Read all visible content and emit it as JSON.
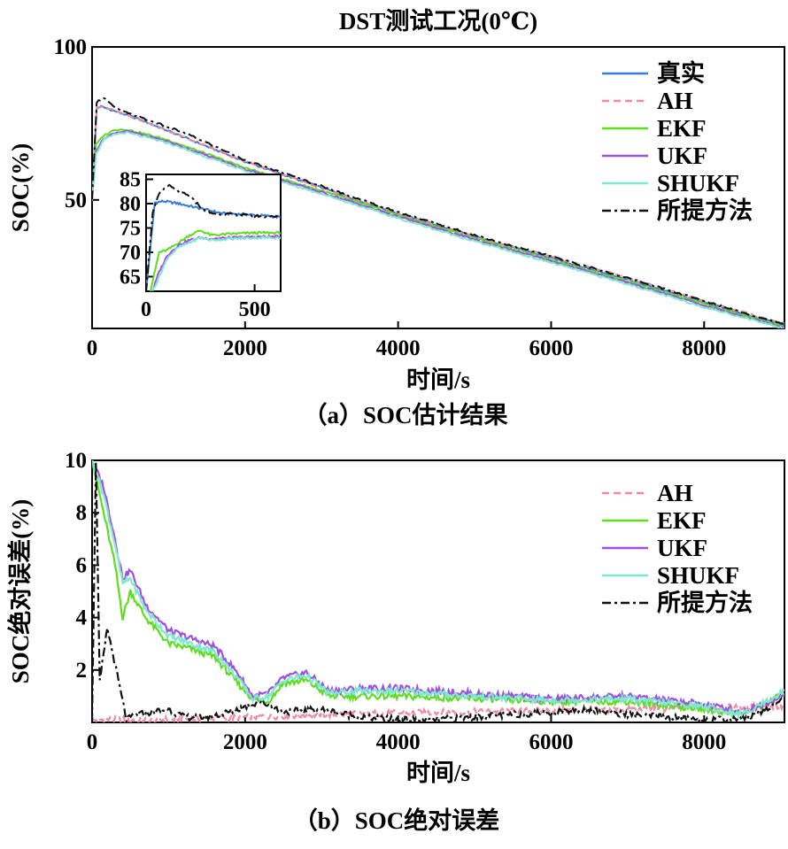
{
  "chart_data": [
    {
      "type": "line",
      "title": "DST测试工况(0℃)",
      "caption": "（a）SOC估计结果",
      "xlabel": "时间/s",
      "ylabel": "SOC(%)",
      "xlim": [
        0,
        9050
      ],
      "ylim": [
        8,
        100
      ],
      "xticks": [
        0,
        2000,
        4000,
        6000,
        8000
      ],
      "yticks": [
        50,
        100
      ],
      "legend_position": "top-right",
      "series": [
        {
          "name": "真实",
          "color": "#3a7bd5",
          "dash": "solid",
          "x": [
            0,
            60,
            120,
            300,
            600,
            1000,
            1500,
            2000,
            3000,
            4000,
            5000,
            6000,
            7000,
            8000,
            9050
          ],
          "y": [
            50,
            80,
            80.5,
            79,
            76.5,
            72.5,
            67.5,
            62.5,
            54,
            45.5,
            38,
            31,
            24,
            16.5,
            9
          ]
        },
        {
          "name": "AH",
          "color": "#f08aa0",
          "dash": "dashed",
          "x": [
            0,
            60,
            150,
            300,
            600,
            1000,
            1500,
            2000,
            3000,
            4000,
            5000,
            6000,
            7000,
            8000,
            9050
          ],
          "y": [
            50,
            80,
            80.5,
            79,
            76.5,
            72.5,
            67.5,
            62.5,
            54,
            45.5,
            38,
            31.5,
            24.5,
            17,
            9.5
          ]
        },
        {
          "name": "EKF",
          "color": "#5fdc1e",
          "dash": "solid",
          "x": [
            0,
            50,
            150,
            300,
            450,
            700,
            1000,
            1500,
            2000,
            3000,
            4000,
            5000,
            6000,
            7000,
            8000,
            9050
          ],
          "y": [
            50,
            68,
            71,
            73,
            73,
            71.5,
            69.5,
            65,
            60.5,
            53,
            45,
            37.5,
            30.5,
            23.5,
            16,
            8.5
          ]
        },
        {
          "name": "UKF",
          "color": "#a050e0",
          "dash": "solid",
          "x": [
            0,
            50,
            150,
            300,
            450,
            700,
            1000,
            1500,
            2000,
            3000,
            4000,
            5000,
            6000,
            7000,
            8000,
            9050
          ],
          "y": [
            50,
            66,
            70,
            72,
            72.5,
            71,
            69,
            64.5,
            60,
            52.5,
            44.5,
            37,
            30,
            23,
            15.5,
            8.3
          ]
        },
        {
          "name": "SHUKF",
          "color": "#7ee8d0",
          "dash": "solid",
          "x": [
            0,
            50,
            150,
            300,
            450,
            700,
            1000,
            1500,
            2000,
            3000,
            4000,
            5000,
            6000,
            7000,
            8000,
            9050
          ],
          "y": [
            50,
            65,
            69.5,
            71.5,
            72,
            70.5,
            68.5,
            64,
            59.5,
            52,
            44,
            36.5,
            29.5,
            22.5,
            15,
            8
          ]
        },
        {
          "name": "所提方法",
          "color": "#111111",
          "dash": "dashdot",
          "x": [
            0,
            60,
            150,
            300,
            500,
            800,
            1200,
            1700,
            2000,
            3000,
            4000,
            5000,
            6000,
            7000,
            8000,
            9050
          ],
          "y": [
            50,
            82,
            83.5,
            80,
            78,
            75.5,
            72,
            66.5,
            63,
            54.5,
            46,
            38.5,
            31.5,
            24.5,
            17,
            9.2
          ]
        }
      ],
      "inset": {
        "xlim": [
          0,
          620
        ],
        "ylim": [
          62,
          86
        ],
        "xticks": [
          0,
          500
        ],
        "yticks": [
          65,
          70,
          75,
          80,
          85
        ],
        "series": [
          {
            "name": "真实",
            "color": "#3a7bd5",
            "dash": "solid",
            "x": [
              0,
              40,
              80,
              150,
              250,
              350,
              450,
              550,
              620
            ],
            "y": [
              62,
              80.2,
              80.5,
              80,
              79,
              78,
              77.8,
              77.5,
              77.2
            ]
          },
          {
            "name": "EKF",
            "color": "#5fdc1e",
            "dash": "solid",
            "x": [
              20,
              60,
              100,
              150,
              200,
              250,
              300,
              400,
              500,
              620
            ],
            "y": [
              62,
              70,
              70.5,
              72,
              73.5,
              74.5,
              73.5,
              73.8,
              74,
              74
            ]
          },
          {
            "name": "UKF",
            "color": "#a050e0",
            "dash": "solid",
            "x": [
              30,
              60,
              100,
              150,
              200,
              250,
              300,
              400,
              500,
              620
            ],
            "y": [
              62,
              66,
              69.5,
              71.5,
              72.5,
              73,
              72.8,
              73,
              73.2,
              73.2
            ]
          },
          {
            "name": "SHUKF",
            "color": "#7ee8d0",
            "dash": "solid",
            "x": [
              30,
              60,
              100,
              150,
              200,
              250,
              300,
              400,
              500,
              620
            ],
            "y": [
              62,
              65,
              69,
              71,
              72,
              73,
              72.5,
              72.8,
              73,
              73
            ]
          },
          {
            "name": "所提方法",
            "color": "#111111",
            "dash": "dashdot",
            "x": [
              0,
              30,
              60,
              100,
              130,
              200,
              260,
              300,
              400,
              500,
              620
            ],
            "y": [
              62,
              78,
              82,
              83.8,
              83,
              81.5,
              79,
              78,
              77.8,
              77.5,
              77.2
            ]
          }
        ]
      }
    },
    {
      "type": "line",
      "caption": "（b）SOC绝对误差",
      "xlabel": "时间/s",
      "ylabel": "SOC绝对误差(%)",
      "xlim": [
        0,
        9050
      ],
      "ylim": [
        0,
        10
      ],
      "xticks": [
        0,
        2000,
        4000,
        6000,
        8000
      ],
      "yticks": [
        2,
        4,
        6,
        8,
        10
      ],
      "legend_position": "top-right",
      "series": [
        {
          "name": "AH",
          "color": "#f08aa0",
          "dash": "dashed",
          "x": [
            0,
            500,
            1000,
            1500,
            2000,
            2500,
            3000,
            4000,
            5000,
            6000,
            7000,
            8000,
            9050
          ],
          "y": [
            0.1,
            0.1,
            0.1,
            0.15,
            0.2,
            0.25,
            0.3,
            0.35,
            0.4,
            0.45,
            0.5,
            0.55,
            0.6
          ]
        },
        {
          "name": "EKF",
          "color": "#5fdc1e",
          "dash": "solid",
          "x": [
            0,
            150,
            300,
            400,
            500,
            700,
            1000,
            1300,
            1600,
            1900,
            2100,
            2300,
            2500,
            2800,
            3100,
            3500,
            4000,
            5000,
            6000,
            7000,
            8000,
            8500,
            9050
          ],
          "y": [
            10,
            8,
            6,
            4,
            5,
            4,
            3,
            2.8,
            2.5,
            1.5,
            0.9,
            0.8,
            1.5,
            1.6,
            1,
            1,
            1,
            0.9,
            0.8,
            0.8,
            0.5,
            0.3,
            1.1
          ]
        },
        {
          "name": "UKF",
          "color": "#a050e0",
          "dash": "solid",
          "x": [
            0,
            150,
            300,
            400,
            500,
            700,
            1000,
            1300,
            1600,
            1900,
            2100,
            2300,
            2500,
            2800,
            3100,
            3500,
            4000,
            5000,
            6000,
            7000,
            8000,
            8500,
            9050
          ],
          "y": [
            10,
            9,
            7,
            5.5,
            5.8,
            4.5,
            3.5,
            3.2,
            2.9,
            1.9,
            1,
            1.1,
            1.7,
            1.9,
            1.2,
            1.3,
            1.3,
            1.1,
            0.9,
            1,
            0.7,
            0.4,
            1
          ]
        },
        {
          "name": "SHUKF",
          "color": "#7ee8d0",
          "dash": "solid",
          "x": [
            0,
            150,
            300,
            400,
            500,
            700,
            1000,
            1300,
            1600,
            1900,
            2100,
            2300,
            2500,
            2800,
            3100,
            3500,
            4000,
            5000,
            6000,
            7000,
            8000,
            8500,
            9050
          ],
          "y": [
            10,
            8.7,
            6.8,
            5.3,
            5.5,
            4.3,
            3.3,
            3,
            2.7,
            1.7,
            0.9,
            1,
            1.6,
            1.8,
            1.1,
            1.2,
            1.2,
            1,
            0.85,
            0.9,
            0.6,
            0.3,
            1.2
          ]
        },
        {
          "name": "所提方法",
          "color": "#111111",
          "dash": "dashdot",
          "x": [
            0,
            50,
            100,
            200,
            350,
            450,
            600,
            800,
            1000,
            1200,
            1500,
            1800,
            2000,
            2200,
            2500,
            3000,
            3500,
            4000,
            4500,
            5000,
            5500,
            6000,
            6500,
            7000,
            7500,
            8000,
            8300,
            8600,
            9050
          ],
          "y": [
            0.1,
            10,
            1.5,
            3.6,
            1.5,
            0.1,
            0.3,
            0.4,
            0.5,
            0.2,
            0.2,
            0.4,
            0.6,
            0.8,
            0.4,
            0.5,
            0.2,
            0.1,
            0.1,
            0.2,
            0.3,
            0.4,
            0.5,
            0.3,
            0.2,
            0.1,
            0.1,
            0.2,
            0.9
          ]
        }
      ]
    }
  ]
}
